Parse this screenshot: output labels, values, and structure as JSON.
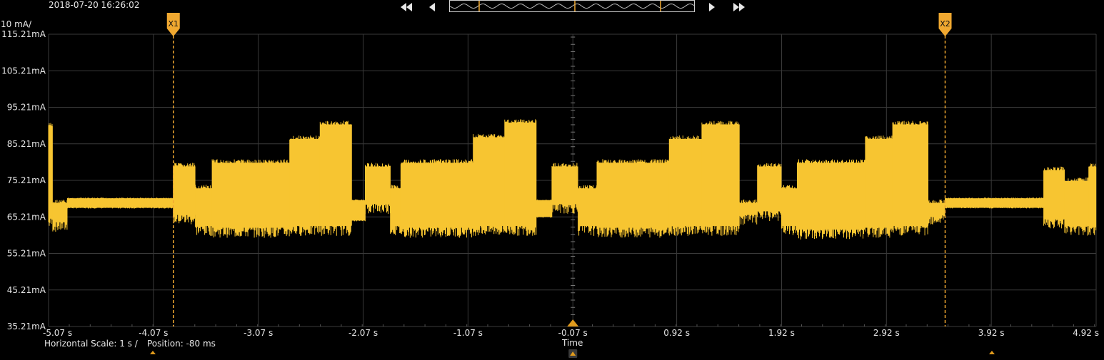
{
  "timestamp": "2018-07-20 16:26:02",
  "nav": {
    "skip_back_icon": "double-left-triangle",
    "step_back_icon": "left-triangle",
    "step_forward_icon": "right-triangle",
    "skip_forward_icon": "double-right-triangle"
  },
  "footer": {
    "horizontal_scale": "Horizontal Scale: 1 s /",
    "position": "Position: -80 ms",
    "time_label": "Time"
  },
  "colors": {
    "trace": "#F7C531",
    "cursor": "#F0A830",
    "grid": "#3a3a3a",
    "background": "#000000"
  },
  "chart_data": {
    "type": "line",
    "title": "",
    "xlabel": "Time",
    "ylabel": "10 mA/",
    "x_ticks": [
      "-5.07 s",
      "-4.07 s",
      "-3.07 s",
      "-2.07 s",
      "-1.07 s",
      "-0.07 s",
      "0.92 s",
      "1.92 s",
      "2.92 s",
      "3.92 s",
      "4.92 s"
    ],
    "y_ticks": [
      "115.21mA",
      "105.21mA",
      "95.21mA",
      "85.21mA",
      "75.21mA",
      "65.21mA",
      "55.21mA",
      "45.21mA",
      "35.21mA"
    ],
    "xlim": [
      -5.07,
      4.92
    ],
    "ylim": [
      35.21,
      115.21
    ],
    "grid": true,
    "cursors": [
      {
        "label": "X1",
        "x": -3.88
      },
      {
        "label": "X2",
        "x": 3.48
      }
    ],
    "trigger_x": -0.07,
    "series": [
      {
        "bands": [
          {
            "x0": -5.07,
            "x1": -5.03,
            "lo": 62,
            "hi": 91
          },
          {
            "x0": -5.03,
            "x1": -4.89,
            "lo": 61,
            "hi": 70
          },
          {
            "x0": -4.89,
            "x1": -3.88,
            "lo": 67.5,
            "hi": 70.5
          },
          {
            "x0": -3.88,
            "x1": -3.67,
            "lo": 63,
            "hi": 80
          },
          {
            "x0": -3.67,
            "x1": -3.51,
            "lo": 60,
            "hi": 74
          },
          {
            "x0": -3.51,
            "x1": -2.77,
            "lo": 59.5,
            "hi": 81
          },
          {
            "x0": -2.77,
            "x1": -2.48,
            "lo": 60,
            "hi": 87.5
          },
          {
            "x0": -2.48,
            "x1": -2.18,
            "lo": 60,
            "hi": 91.5
          },
          {
            "x0": -2.18,
            "x1": -2.05,
            "lo": 64,
            "hi": 70
          },
          {
            "x0": -2.05,
            "x1": -1.81,
            "lo": 66,
            "hi": 80
          },
          {
            "x0": -1.81,
            "x1": -1.71,
            "lo": 60,
            "hi": 74
          },
          {
            "x0": -1.71,
            "x1": -1.02,
            "lo": 59.5,
            "hi": 81
          },
          {
            "x0": -1.02,
            "x1": -0.72,
            "lo": 60,
            "hi": 88
          },
          {
            "x0": -0.72,
            "x1": -0.42,
            "lo": 60,
            "hi": 92
          },
          {
            "x0": -0.42,
            "x1": -0.27,
            "lo": 65,
            "hi": 70
          },
          {
            "x0": -0.27,
            "x1": -0.02,
            "lo": 66,
            "hi": 80
          },
          {
            "x0": -0.02,
            "x1": 0.16,
            "lo": 60,
            "hi": 74
          },
          {
            "x0": 0.16,
            "x1": 0.85,
            "lo": 59.5,
            "hi": 81
          },
          {
            "x0": 0.85,
            "x1": 1.16,
            "lo": 60,
            "hi": 87.5
          },
          {
            "x0": 1.16,
            "x1": 1.52,
            "lo": 60,
            "hi": 91.5
          },
          {
            "x0": 1.52,
            "x1": 1.69,
            "lo": 63,
            "hi": 70
          },
          {
            "x0": 1.69,
            "x1": 1.92,
            "lo": 64,
            "hi": 80
          },
          {
            "x0": 1.92,
            "x1": 2.07,
            "lo": 60,
            "hi": 74
          },
          {
            "x0": 2.07,
            "x1": 2.72,
            "lo": 59,
            "hi": 81
          },
          {
            "x0": 2.72,
            "x1": 2.98,
            "lo": 59.5,
            "hi": 87.5
          },
          {
            "x0": 2.98,
            "x1": 3.32,
            "lo": 60,
            "hi": 91.5
          },
          {
            "x0": 3.32,
            "x1": 3.48,
            "lo": 63,
            "hi": 70
          },
          {
            "x0": 3.48,
            "x1": 4.42,
            "lo": 67.5,
            "hi": 70.5
          },
          {
            "x0": 4.42,
            "x1": 4.62,
            "lo": 62,
            "hi": 79
          },
          {
            "x0": 4.62,
            "x1": 4.85,
            "lo": 60,
            "hi": 76
          },
          {
            "x0": 4.85,
            "x1": 4.92,
            "lo": 60,
            "hi": 80
          }
        ]
      }
    ]
  }
}
